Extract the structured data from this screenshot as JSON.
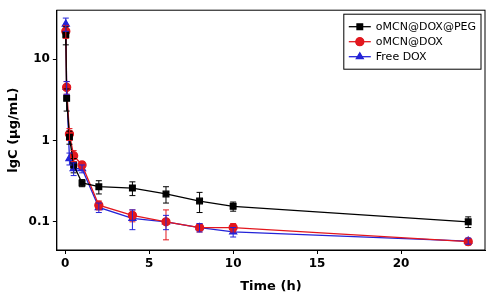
{
  "chart_data": {
    "type": "line",
    "x_label": "Time (h)",
    "y_label": "lgC (μg/mL)",
    "log": "y",
    "grid": false,
    "legend": "upper right",
    "xlim": [
      -0.5,
      25
    ],
    "xticks": [
      0,
      5,
      10,
      15,
      20
    ],
    "ylim": [
      0.045,
      40
    ],
    "yticks": [
      0.1,
      1,
      10
    ],
    "x": [
      0.033,
      0.083,
      0.25,
      0.5,
      1,
      2,
      4,
      6,
      8,
      10,
      24
    ],
    "series": [
      {
        "name": "oMCN@DOX@PEG",
        "color": "#000000",
        "marker": "square",
        "values": [
          20,
          3.3,
          1.1,
          0.5,
          0.3,
          0.27,
          0.26,
          0.22,
          0.18,
          0.155,
          0.1
        ],
        "errors": [
          5,
          1,
          0.2,
          0.1,
          0.03,
          0.05,
          0.05,
          0.05,
          0.05,
          0.02,
          0.015
        ]
      },
      {
        "name": "oMCN@DOX",
        "color": "#e3171e",
        "marker": "circle",
        "values": [
          22,
          4.5,
          1.2,
          0.65,
          0.5,
          0.16,
          0.12,
          0.1,
          0.085,
          0.085,
          0.057
        ],
        "errors": [
          4,
          0.8,
          0.2,
          0.1,
          0.05,
          0.02,
          0.02,
          0.04,
          0.01,
          0.01,
          0.005
        ]
      },
      {
        "name": "Free DOX",
        "color": "#2323d8",
        "marker": "triangle",
        "values": [
          27,
          4.5,
          0.6,
          0.45,
          0.45,
          0.15,
          0.11,
          0.1,
          0.085,
          0.075,
          0.058
        ],
        "errors": [
          5,
          0.8,
          0.1,
          0.08,
          0.05,
          0.02,
          0.03,
          0.02,
          0.01,
          0.01,
          0.005
        ]
      }
    ]
  }
}
